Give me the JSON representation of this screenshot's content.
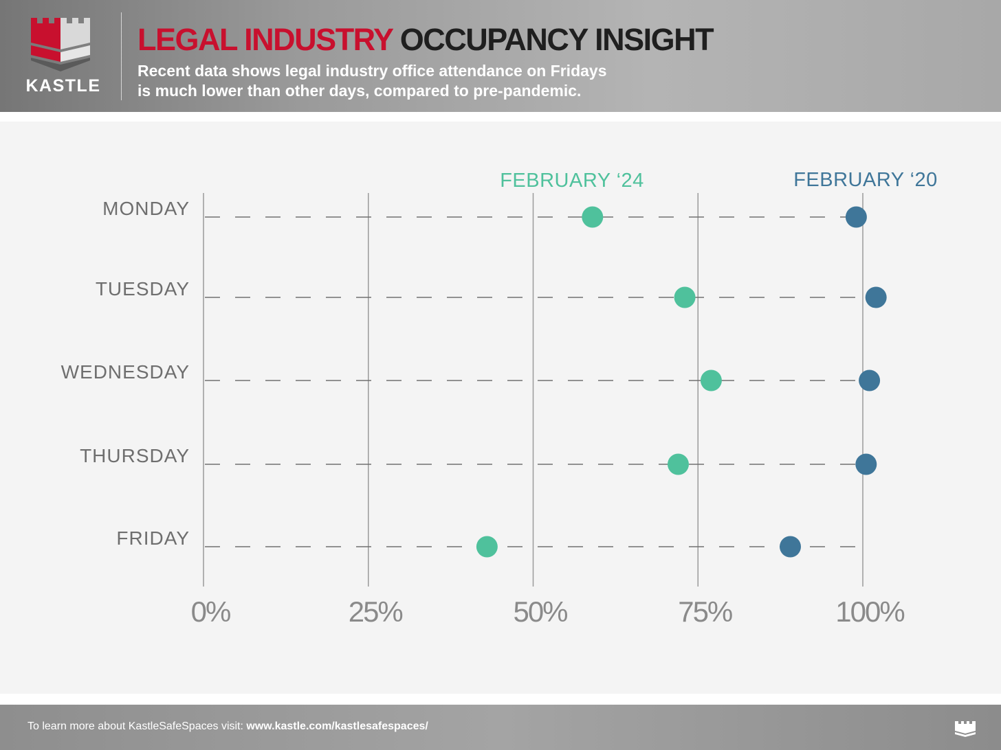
{
  "brand": {
    "name": "KASTLE",
    "logo_icon": "castle-tower-icon",
    "colors": {
      "red": "#c8102e",
      "silver": "#d9d9d9"
    }
  },
  "header": {
    "title_highlight": "LEGAL INDUSTRY",
    "title_rest": "OCCUPANCY INSIGHT",
    "subtitle_line1": "Recent data shows legal industry office attendance on Fridays",
    "subtitle_line2": "is much lower than other days, compared to pre-pandemic."
  },
  "chart_data": {
    "type": "scatter",
    "subtype": "dot-plot",
    "orientation": "horizontal",
    "categories": [
      "MONDAY",
      "TUESDAY",
      "WEDNESDAY",
      "THURSDAY",
      "FRIDAY"
    ],
    "x_ticks": [
      "0%",
      "25%",
      "50%",
      "75%",
      "100%"
    ],
    "xlim": [
      0,
      100
    ],
    "grid": "vertical lines at ticks; dashed row guides",
    "legend_placement": "above plot, labels over each series",
    "series": [
      {
        "name": "FEBRUARY ‘24",
        "color": "#4fc19c",
        "values": [
          59,
          73,
          77,
          72,
          43
        ]
      },
      {
        "name": "FEBRUARY ‘20",
        "color": "#3f7699",
        "values": [
          99,
          102,
          101,
          100.5,
          89
        ]
      }
    ]
  },
  "footer": {
    "text_prefix": "To learn more about KastleSafeSpaces visit: ",
    "link": "www.kastle.com/kastlesafespaces/",
    "icon": "castle-icon"
  }
}
